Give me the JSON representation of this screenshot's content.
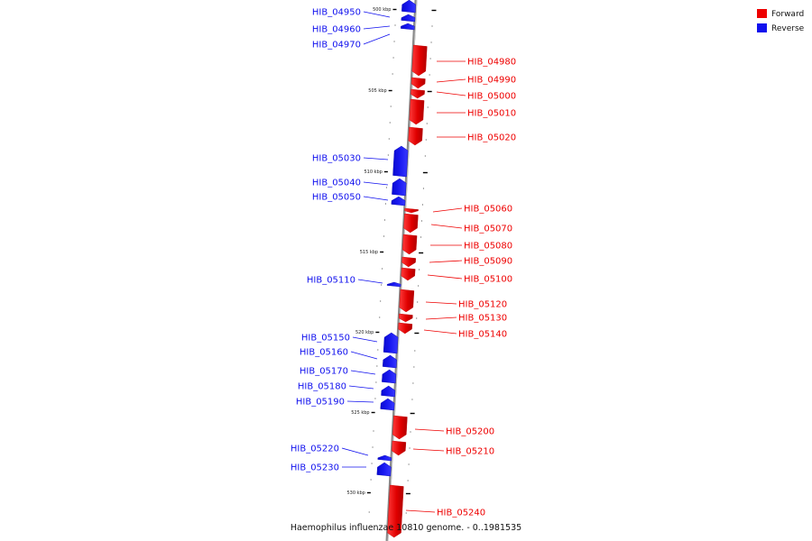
{
  "title": "Haemophilus influenzae 10810 genome. - 0..1981535",
  "legend": [
    {
      "label": "Forward",
      "color": "#ee0000"
    },
    {
      "label": "Reverse",
      "color": "#1010ee"
    }
  ],
  "colors": {
    "forward": "#ee0000",
    "reverse": "#1010ee",
    "axis": "#888888"
  },
  "ticks": [
    "500 kbp",
    "505 kbp",
    "510 kbp",
    "515 kbp",
    "520 kbp",
    "525 kbp",
    "530 kbp"
  ],
  "genes": [
    {
      "name": "HIB_04950",
      "strand": "reverse"
    },
    {
      "name": "HIB_04960",
      "strand": "reverse"
    },
    {
      "name": "HIB_04970",
      "strand": "reverse"
    },
    {
      "name": "HIB_04980",
      "strand": "forward"
    },
    {
      "name": "HIB_04990",
      "strand": "forward"
    },
    {
      "name": "HIB_05000",
      "strand": "forward"
    },
    {
      "name": "HIB_05010",
      "strand": "forward"
    },
    {
      "name": "HIB_05020",
      "strand": "forward"
    },
    {
      "name": "HIB_05030",
      "strand": "reverse"
    },
    {
      "name": "HIB_05040",
      "strand": "reverse"
    },
    {
      "name": "HIB_05050",
      "strand": "reverse"
    },
    {
      "name": "HIB_05060",
      "strand": "forward"
    },
    {
      "name": "HIB_05070",
      "strand": "forward"
    },
    {
      "name": "HIB_05080",
      "strand": "forward"
    },
    {
      "name": "HIB_05090",
      "strand": "forward"
    },
    {
      "name": "HIB_05100",
      "strand": "forward"
    },
    {
      "name": "HIB_05110",
      "strand": "reverse"
    },
    {
      "name": "HIB_05120",
      "strand": "forward"
    },
    {
      "name": "HIB_05130",
      "strand": "forward"
    },
    {
      "name": "HIB_05140",
      "strand": "forward"
    },
    {
      "name": "HIB_05150",
      "strand": "reverse"
    },
    {
      "name": "HIB_05160",
      "strand": "reverse"
    },
    {
      "name": "HIB_05170",
      "strand": "reverse"
    },
    {
      "name": "HIB_05180",
      "strand": "reverse"
    },
    {
      "name": "HIB_05190",
      "strand": "reverse"
    },
    {
      "name": "HIB_05200",
      "strand": "forward"
    },
    {
      "name": "HIB_05210",
      "strand": "forward"
    },
    {
      "name": "HIB_05220",
      "strand": "reverse"
    },
    {
      "name": "HIB_05230",
      "strand": "reverse"
    },
    {
      "name": "HIB_05240",
      "strand": "forward"
    }
  ]
}
